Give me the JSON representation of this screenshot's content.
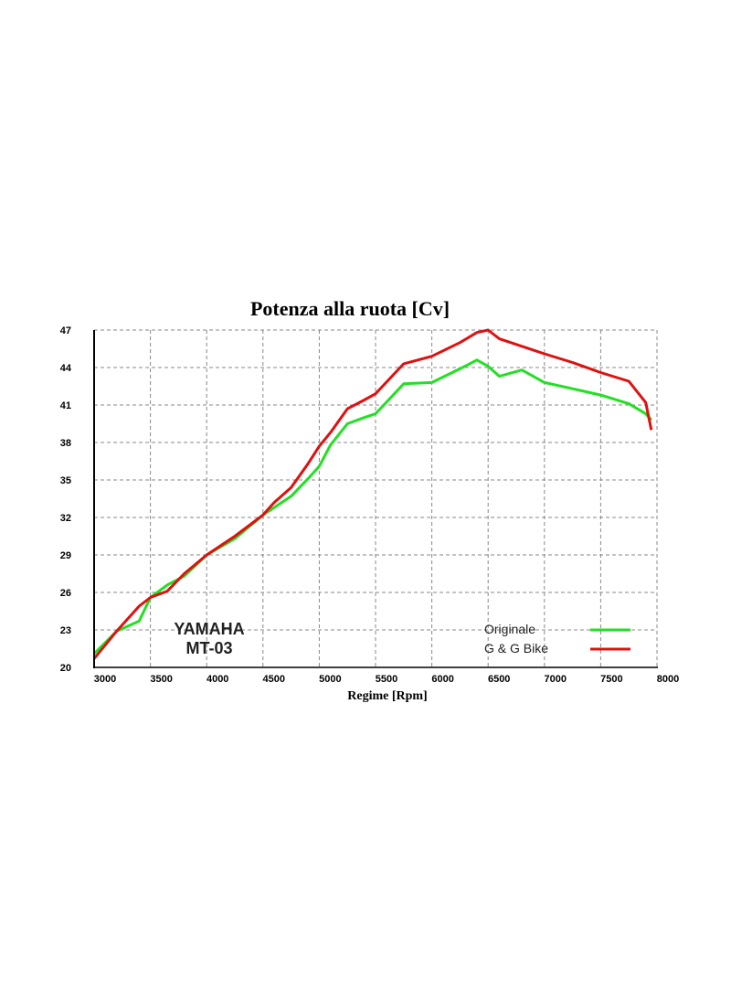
{
  "chart_data": {
    "type": "line",
    "title": "Potenza alla ruota  [Cv]",
    "xlabel": "Regime [Rpm]",
    "ylabel": "",
    "xlim": [
      3000,
      8000
    ],
    "ylim": [
      20,
      47
    ],
    "xticks": [
      3000,
      3500,
      4000,
      4500,
      5000,
      5500,
      6000,
      6500,
      7000,
      7500,
      8000
    ],
    "yticks": [
      20,
      23,
      26,
      29,
      32,
      35,
      38,
      41,
      44,
      47
    ],
    "grid": true,
    "legend_position": "bottom-right",
    "annotation": [
      "YAMAHA",
      "MT-03"
    ],
    "series": [
      {
        "name": "Originale",
        "color": "#22e022",
        "x": [
          3000,
          3200,
          3400,
          3500,
          3650,
          3800,
          4000,
          4250,
          4500,
          4600,
          4750,
          4900,
          5000,
          5100,
          5250,
          5400,
          5500,
          5750,
          6000,
          6250,
          6400,
          6500,
          6600,
          6800,
          7000,
          7250,
          7500,
          7750,
          7900,
          7950
        ],
        "y": [
          21.1,
          22.9,
          23.7,
          25.6,
          26.6,
          27.3,
          29.0,
          30.3,
          32.2,
          32.8,
          33.7,
          35.1,
          36.1,
          37.8,
          39.5,
          40.0,
          40.3,
          42.7,
          42.8,
          43.9,
          44.6,
          44.1,
          43.3,
          43.8,
          42.8,
          42.3,
          41.8,
          41.1,
          40.3,
          39.8
        ]
      },
      {
        "name": "G & G Bike",
        "color": "#e01010",
        "x": [
          3000,
          3200,
          3400,
          3500,
          3650,
          3800,
          4000,
          4250,
          4500,
          4600,
          4750,
          4900,
          5000,
          5100,
          5250,
          5400,
          5500,
          5750,
          6000,
          6250,
          6400,
          6500,
          6600,
          6800,
          7000,
          7250,
          7500,
          7750,
          7900,
          7950
        ],
        "y": [
          20.7,
          22.9,
          24.9,
          25.6,
          26.1,
          27.5,
          29.0,
          30.5,
          32.2,
          33.2,
          34.4,
          36.3,
          37.7,
          38.8,
          40.7,
          41.4,
          41.9,
          44.3,
          44.9,
          46.0,
          46.8,
          47.0,
          46.3,
          45.7,
          45.1,
          44.4,
          43.6,
          42.9,
          41.2,
          39.0
        ]
      }
    ]
  }
}
